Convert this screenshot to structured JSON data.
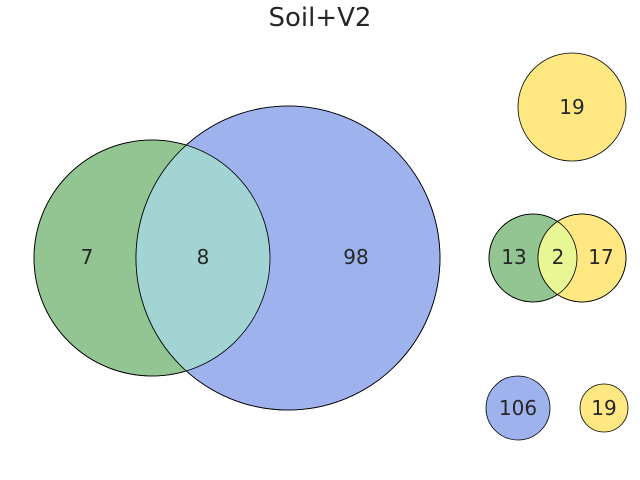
{
  "title": "Soil+V2",
  "colors": {
    "green": "#92c591",
    "blue": "#9eb3ed",
    "yellow": "#ffe882",
    "green_blue_overlap": "#a2d4d4",
    "green_yellow_overlap": "#e8f694",
    "stroke": "#000000"
  },
  "main_venn": {
    "left_only": "7",
    "overlap": "8",
    "right_only": "98"
  },
  "small_panels": {
    "top_single": "19",
    "middle_left_only": "13",
    "middle_overlap": "2",
    "middle_right_only": "17",
    "bottom_left": "106",
    "bottom_right": "19"
  }
}
